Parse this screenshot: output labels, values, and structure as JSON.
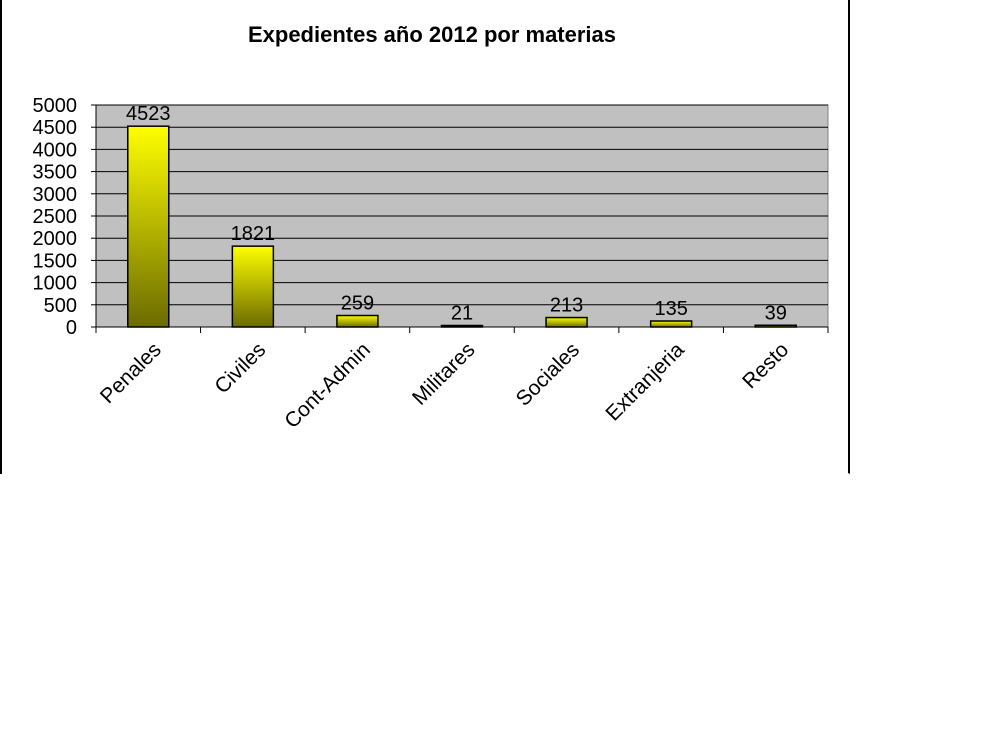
{
  "chart_data": {
    "type": "bar",
    "title": "Expedientes  año 2012 por materias",
    "categories": [
      "Penales",
      "Civiles",
      "Cont-Admin",
      "Militares",
      "Sociales",
      "Extranjeria",
      "Resto"
    ],
    "values": [
      4523,
      1821,
      259,
      21,
      213,
      135,
      39
    ],
    "data_labels": [
      "4523",
      "1821",
      "259",
      "21",
      "213",
      "135",
      "39"
    ],
    "yticks": [
      "0",
      "500",
      "1000",
      "1500",
      "2000",
      "2500",
      "3000",
      "3500",
      "4000",
      "4500",
      "5000"
    ],
    "ylim": [
      0,
      5000
    ],
    "xlabel": "",
    "ylabel": "",
    "grid": true,
    "legend": "none",
    "colors": {
      "plot_bg": "#c0c0c0",
      "bar_top": "#ffff00",
      "bar_bottom": "#6b6b00",
      "bar_stroke": "#000000",
      "grid": "#000000"
    }
  }
}
